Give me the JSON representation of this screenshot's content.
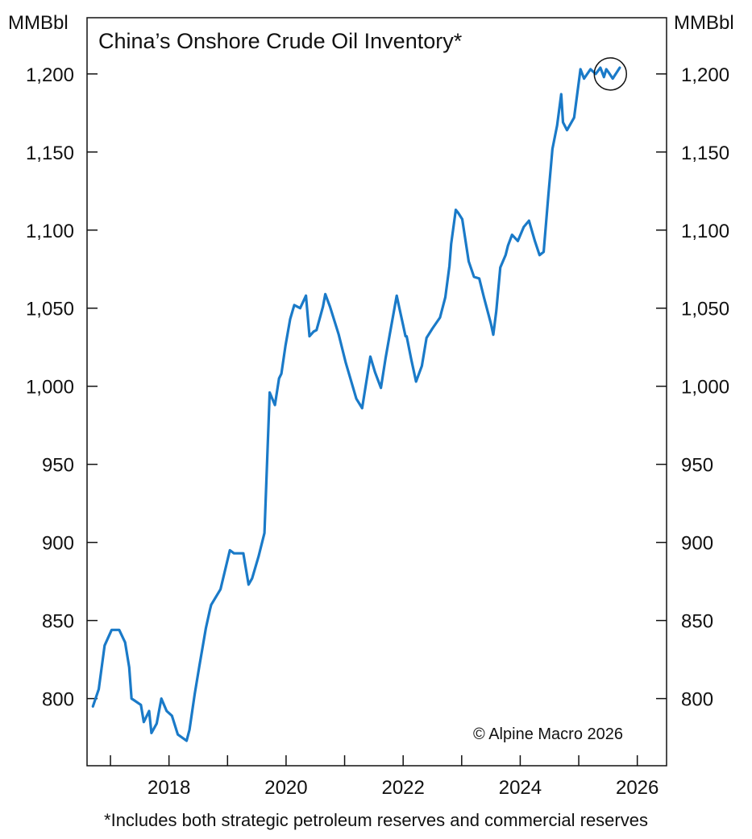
{
  "chart_data": {
    "type": "line",
    "title": "China’s Onshore Crude Oil Inventory*",
    "y_unit_left": "MMBbl",
    "y_unit_right": "MMBbl",
    "ylim": [
      757,
      1236
    ],
    "xlim": [
      2016.6,
      2026.5
    ],
    "yticks": [
      800,
      850,
      900,
      950,
      1000,
      1050,
      1100,
      1150,
      1200
    ],
    "ytick_labels": [
      "800",
      "850",
      "900",
      "950",
      "1,000",
      "1,050",
      "1,100",
      "1,150",
      "1,200"
    ],
    "xticks": [
      2018,
      2020,
      2022,
      2024,
      2026
    ],
    "xtick_labels": [
      "2018",
      "2020",
      "2022",
      "2024",
      "2026"
    ],
    "minor_xticks": [
      2017,
      2019,
      2021,
      2023,
      2025
    ],
    "grid": false,
    "color": "#1a7ac8",
    "series": [
      {
        "name": "",
        "x": [
          2016.7,
          2016.8,
          2016.9,
          2017.02,
          2017.15,
          2017.25,
          2017.32,
          2017.36,
          2017.4,
          2017.52,
          2017.57,
          2017.66,
          2017.7,
          2017.79,
          2017.87,
          2017.96,
          2018.05,
          2018.15,
          2018.3,
          2018.35,
          2018.44,
          2018.52,
          2018.63,
          2018.7,
          2018.72,
          2018.88,
          2019.04,
          2019.11,
          2019.19,
          2019.27,
          2019.36,
          2019.42,
          2019.53,
          2019.63,
          2019.72,
          2019.81,
          2019.88,
          2019.92,
          2019.99,
          2020.07,
          2020.14,
          2020.24,
          2020.34,
          2020.4,
          2020.47,
          2020.52,
          2020.63,
          2020.67,
          2020.75,
          2020.9,
          2021.02,
          2021.2,
          2021.3,
          2021.44,
          2021.52,
          2021.62,
          2021.7,
          2021.77,
          2021.89,
          2021.93,
          2022.0,
          2022.04,
          2022.06,
          2022.14,
          2022.22,
          2022.32,
          2022.4,
          2022.5,
          2022.63,
          2022.72,
          2022.79,
          2022.82,
          2022.9,
          2022.94,
          2023.01,
          2023.12,
          2023.21,
          2023.3,
          2023.38,
          2023.5,
          2023.54,
          2023.59,
          2023.66,
          2023.75,
          2023.79,
          2023.86,
          2023.96,
          2024.06,
          2024.15,
          2024.25,
          2024.33,
          2024.4,
          2024.48,
          2024.55,
          2024.63,
          2024.7,
          2024.73,
          2024.8,
          2024.92,
          2025.03,
          2025.09,
          2025.2,
          2025.29,
          2025.37,
          2025.43,
          2025.47,
          2025.51,
          2025.58,
          2025.7
        ],
        "values": [
          795,
          806,
          834,
          844,
          844,
          836,
          820,
          800,
          799,
          796,
          785,
          792,
          778,
          784,
          800,
          792,
          789,
          777,
          773,
          780,
          803,
          821,
          845,
          857,
          860,
          870,
          895,
          893,
          893,
          893,
          873,
          877,
          891,
          906,
          996,
          988,
          1005,
          1008,
          1026,
          1043,
          1052,
          1050,
          1058,
          1032,
          1035,
          1036,
          1051,
          1059,
          1051,
          1033,
          1015,
          992,
          986,
          1019,
          1009,
          999,
          1018,
          1033,
          1058,
          1051,
          1039,
          1032,
          1032,
          1017,
          1003,
          1013,
          1031,
          1037,
          1044,
          1057,
          1077,
          1091,
          1113,
          1111,
          1107,
          1080,
          1070,
          1069,
          1057,
          1040,
          1033,
          1048,
          1076,
          1084,
          1090,
          1097,
          1093,
          1102,
          1106,
          1093,
          1084,
          1086,
          1122,
          1152,
          1167,
          1187,
          1169,
          1164,
          1172,
          1203,
          1197,
          1203,
          1200,
          1204,
          1198,
          1203,
          1201,
          1197,
          1204
        ]
      }
    ],
    "highlight": {
      "x": 2025.54,
      "y": 1200
    },
    "credit": "© Alpine Macro 2026"
  },
  "footnote": "*Includes both strategic petroleum reserves and commercial reserves"
}
